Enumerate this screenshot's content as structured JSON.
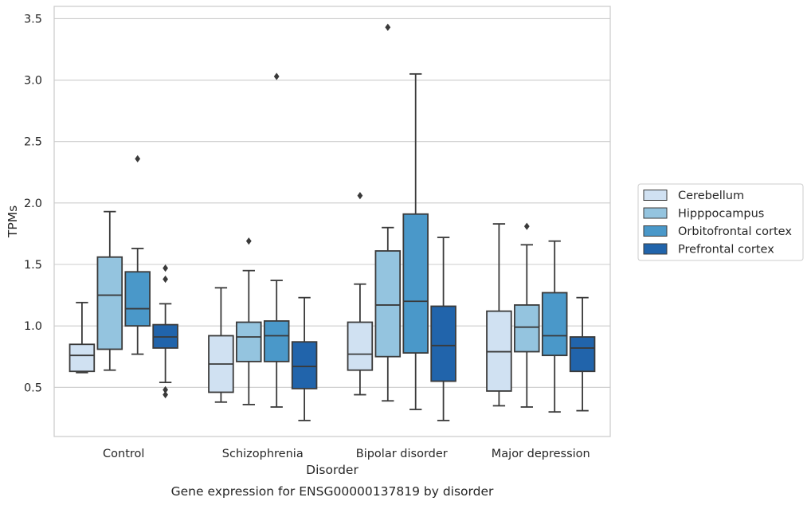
{
  "chart_data": {
    "type": "box",
    "caption": "Gene expression for ENSG00000137819 by disorder",
    "xlabel": "Disorder",
    "ylabel": "TPMs",
    "ylim": [
      0.1,
      3.6
    ],
    "yticks": [
      "0.5",
      "1.0",
      "1.5",
      "2.0",
      "2.5",
      "3.0",
      "3.5"
    ],
    "grid": "horizontal",
    "legend_position": "right",
    "categories": [
      "Control",
      "Schizophrenia",
      "Bipolar disorder",
      "Major depression"
    ],
    "series": [
      {
        "name": "Cerebellum",
        "color": "#d0e1f2",
        "boxes": [
          {
            "whislo": 0.62,
            "q1": 0.63,
            "med": 0.76,
            "q3": 0.85,
            "whishi": 1.19,
            "fliers": []
          },
          {
            "whislo": 0.38,
            "q1": 0.46,
            "med": 0.69,
            "q3": 0.92,
            "whishi": 1.31,
            "fliers": []
          },
          {
            "whislo": 0.44,
            "q1": 0.64,
            "med": 0.77,
            "q3": 1.03,
            "whishi": 1.34,
            "fliers": [
              2.06
            ]
          },
          {
            "whislo": 0.35,
            "q1": 0.47,
            "med": 0.79,
            "q3": 1.12,
            "whishi": 1.83,
            "fliers": []
          }
        ]
      },
      {
        "name": "Hipppocampus",
        "color": "#94c4df",
        "boxes": [
          {
            "whislo": 0.64,
            "q1": 0.81,
            "med": 1.25,
            "q3": 1.56,
            "whishi": 1.93,
            "fliers": []
          },
          {
            "whislo": 0.36,
            "q1": 0.71,
            "med": 0.91,
            "q3": 1.03,
            "whishi": 1.45,
            "fliers": [
              1.69
            ]
          },
          {
            "whislo": 0.39,
            "q1": 0.75,
            "med": 1.17,
            "q3": 1.61,
            "whishi": 1.8,
            "fliers": [
              3.43
            ]
          },
          {
            "whislo": 0.34,
            "q1": 0.79,
            "med": 0.99,
            "q3": 1.17,
            "whishi": 1.66,
            "fliers": [
              1.81
            ]
          }
        ]
      },
      {
        "name": "Orbitofrontal cortex",
        "color": "#4a98c9",
        "boxes": [
          {
            "whislo": 0.77,
            "q1": 1.0,
            "med": 1.14,
            "q3": 1.44,
            "whishi": 1.63,
            "fliers": [
              2.36
            ]
          },
          {
            "whislo": 0.34,
            "q1": 0.71,
            "med": 0.92,
            "q3": 1.04,
            "whishi": 1.37,
            "fliers": [
              3.03
            ]
          },
          {
            "whislo": 0.32,
            "q1": 0.78,
            "med": 1.2,
            "q3": 1.91,
            "whishi": 3.05,
            "fliers": []
          },
          {
            "whislo": 0.3,
            "q1": 0.76,
            "med": 0.92,
            "q3": 1.27,
            "whishi": 1.69,
            "fliers": []
          }
        ]
      },
      {
        "name": "Prefrontal cortex",
        "color": "#2164ab",
        "boxes": [
          {
            "whislo": 0.54,
            "q1": 0.82,
            "med": 0.91,
            "q3": 1.01,
            "whishi": 1.18,
            "fliers": [
              1.47,
              1.38,
              0.48,
              0.44
            ]
          },
          {
            "whislo": 0.23,
            "q1": 0.49,
            "med": 0.67,
            "q3": 0.87,
            "whishi": 1.23,
            "fliers": []
          },
          {
            "whislo": 0.23,
            "q1": 0.55,
            "med": 0.84,
            "q3": 1.16,
            "whishi": 1.72,
            "fliers": []
          },
          {
            "whislo": 0.31,
            "q1": 0.63,
            "med": 0.82,
            "q3": 0.91,
            "whishi": 1.23,
            "fliers": []
          }
        ]
      }
    ]
  }
}
